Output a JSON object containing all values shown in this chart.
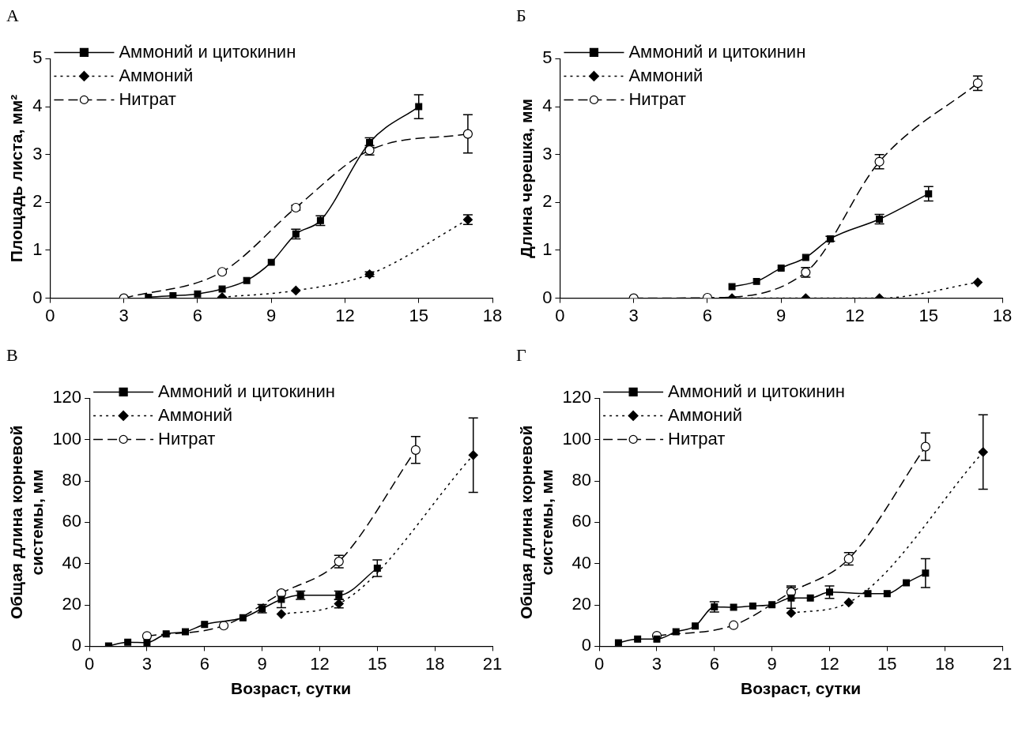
{
  "chart_data": [
    {
      "type": "line",
      "title": "А",
      "ylabel": "Площадь листа, мм²",
      "xlim": [
        0,
        18
      ],
      "xticks": [
        0,
        3,
        6,
        9,
        12,
        15,
        18
      ],
      "ylim": [
        0,
        5
      ],
      "yticks": [
        0,
        1,
        2,
        3,
        4,
        5
      ],
      "grid": false,
      "legend": "top left",
      "series": [
        {
          "name": "Аммоний и цитокинин",
          "color": "#000000",
          "marker": "square",
          "line_style": "solid",
          "x": [
            4,
            5,
            6,
            7,
            8,
            9,
            10,
            11,
            13,
            15
          ],
          "values": [
            0.02,
            0.05,
            0.09,
            0.19,
            0.37,
            0.75,
            1.34,
            1.62,
            3.25,
            4.0
          ],
          "errors": [
            null,
            null,
            null,
            null,
            null,
            null,
            0.1,
            0.1,
            0.1,
            0.25
          ]
        },
        {
          "name": "Аммоний",
          "color": "#000000",
          "marker": "diamond",
          "line_style": "dotted",
          "x": [
            7,
            10,
            13,
            17
          ],
          "values": [
            0.02,
            0.16,
            0.5,
            1.64
          ],
          "errors": [
            null,
            null,
            0.05,
            0.1
          ]
        },
        {
          "name": "Нитрат",
          "color": "#000000",
          "marker": "circle",
          "line_style": "dashed",
          "x": [
            3,
            7,
            10,
            13,
            17
          ],
          "values": [
            0.0,
            0.55,
            1.89,
            3.09,
            3.43
          ],
          "errors": [
            null,
            null,
            0.05,
            0.1,
            0.4
          ]
        }
      ]
    },
    {
      "type": "line",
      "title": "Б",
      "ylabel": "Длина черешка, мм",
      "xlim": [
        0,
        18
      ],
      "xticks": [
        0,
        3,
        6,
        9,
        12,
        15,
        18
      ],
      "ylim": [
        0,
        5
      ],
      "yticks": [
        0,
        1,
        2,
        3,
        4,
        5
      ],
      "grid": false,
      "legend": "top left",
      "series": [
        {
          "name": "Аммоний и цитокинин",
          "color": "#000000",
          "marker": "square",
          "line_style": "solid",
          "x": [
            7,
            8,
            9,
            10,
            11,
            13,
            15
          ],
          "values": [
            0.24,
            0.35,
            0.63,
            0.85,
            1.24,
            1.65,
            2.18
          ],
          "errors": [
            null,
            null,
            null,
            null,
            0.05,
            0.1,
            0.15
          ]
        },
        {
          "name": "Аммоний",
          "color": "#000000",
          "marker": "diamond",
          "line_style": "dotted",
          "x": [
            7,
            10,
            13,
            17
          ],
          "values": [
            0.0,
            0.0,
            0.0,
            0.33
          ],
          "errors": [
            null,
            null,
            null,
            null
          ]
        },
        {
          "name": "Нитрат",
          "color": "#000000",
          "marker": "circle",
          "line_style": "dashed",
          "x": [
            3,
            6,
            10,
            13,
            17
          ],
          "values": [
            0.0,
            0.01,
            0.54,
            2.85,
            4.49
          ],
          "errors": [
            null,
            null,
            0.1,
            0.15,
            0.15
          ]
        }
      ]
    },
    {
      "type": "line",
      "title": "В",
      "xlabel": "Возраст, сутки",
      "ylabel": "Общая длина корневой\nсистемы, мм",
      "xlim": [
        0,
        21
      ],
      "xticks": [
        0,
        3,
        6,
        9,
        12,
        15,
        18,
        21
      ],
      "ylim": [
        0,
        120
      ],
      "yticks": [
        0,
        20,
        40,
        60,
        80,
        100,
        120
      ],
      "grid": false,
      "legend": "top left",
      "series": [
        {
          "name": "Аммоний и цитокинин",
          "color": "#000000",
          "marker": "square",
          "line_style": "solid",
          "x": [
            1,
            2,
            3,
            4,
            5,
            6,
            8,
            9,
            10,
            11,
            13,
            15
          ],
          "values": [
            0.2,
            2,
            1.8,
            6,
            7,
            10.6,
            13.8,
            18.2,
            22.7,
            24.7,
            24.7,
            37.8
          ],
          "errors": [
            null,
            null,
            null,
            null,
            null,
            null,
            null,
            2,
            4,
            2,
            2,
            4
          ]
        },
        {
          "name": "Аммоний",
          "color": "#000000",
          "marker": "diamond",
          "line_style": "dotted",
          "x": [
            10,
            13,
            20
          ],
          "values": [
            15.6,
            20.6,
            92.5
          ],
          "errors": [
            null,
            2,
            18
          ]
        },
        {
          "name": "Нитрат",
          "color": "#000000",
          "marker": "circle",
          "line_style": "dashed",
          "x": [
            3,
            7,
            10,
            13,
            17
          ],
          "values": [
            5,
            10,
            25.7,
            41,
            95
          ],
          "errors": [
            null,
            null,
            null,
            3,
            6.5
          ]
        }
      ]
    },
    {
      "type": "line",
      "title": "Г",
      "xlabel": "Возраст, сутки",
      "ylabel": "Общая длина корневой\nсистемы, мм",
      "xlim": [
        0,
        21
      ],
      "xticks": [
        0,
        3,
        6,
        9,
        12,
        15,
        18,
        21
      ],
      "ylim": [
        0,
        120
      ],
      "yticks": [
        0,
        20,
        40,
        60,
        80,
        100,
        120
      ],
      "grid": false,
      "legend": "top left",
      "series": [
        {
          "name": "Аммоний и цитокинин",
          "color": "#000000",
          "marker": "square",
          "line_style": "solid",
          "x": [
            1,
            2,
            3,
            4,
            5,
            6,
            7,
            8,
            9,
            10,
            11,
            12,
            14,
            15,
            16,
            17
          ],
          "values": [
            1.7,
            3.5,
            3.5,
            7,
            9.8,
            19.1,
            18.9,
            19.5,
            20.1,
            23.4,
            23.4,
            26.2,
            25.5,
            25.5,
            30.7,
            35.4
          ],
          "errors": [
            null,
            null,
            null,
            null,
            null,
            2.5,
            null,
            null,
            null,
            5,
            null,
            3,
            null,
            null,
            null,
            7
          ]
        },
        {
          "name": "Аммоний",
          "color": "#000000",
          "marker": "diamond",
          "line_style": "dotted",
          "x": [
            10,
            13,
            20
          ],
          "values": [
            16.1,
            21.2,
            94
          ],
          "errors": [
            null,
            null,
            18
          ]
        },
        {
          "name": "Нитрат",
          "color": "#000000",
          "marker": "circle",
          "line_style": "dashed",
          "x": [
            3,
            7,
            10,
            13,
            17
          ],
          "values": [
            5.1,
            10.2,
            26.2,
            42.3,
            96.6
          ],
          "errors": [
            null,
            null,
            3,
            3,
            6.6
          ]
        }
      ]
    }
  ]
}
